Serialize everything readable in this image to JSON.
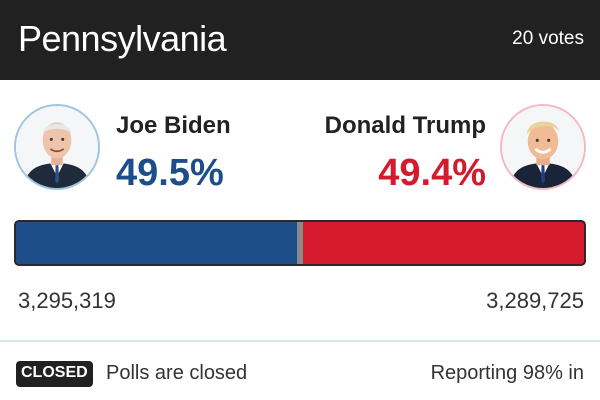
{
  "header": {
    "state": "Pennsylvania",
    "electoral_votes": "20 votes"
  },
  "candidates": [
    {
      "name": "Joe Biden",
      "percent_label": "49.5%",
      "percent": 49.5,
      "votes_label": "3,295,319",
      "votes": 3295319,
      "color": "#1d4e8a",
      "ring_color": "#9ec3e3",
      "avatar_icon": "candidate-portrait-icon"
    },
    {
      "name": "Donald Trump",
      "percent_label": "49.4%",
      "percent": 49.4,
      "votes_label": "3,289,725",
      "votes": 3289725,
      "color": "#d41a2c",
      "ring_color": "#f3b9bf",
      "avatar_icon": "candidate-portrait-icon"
    }
  ],
  "other_color": "#8a8a8a",
  "footer": {
    "status_badge": "CLOSED",
    "status_text": "Polls are closed",
    "reporting": "Reporting 98% in"
  }
}
